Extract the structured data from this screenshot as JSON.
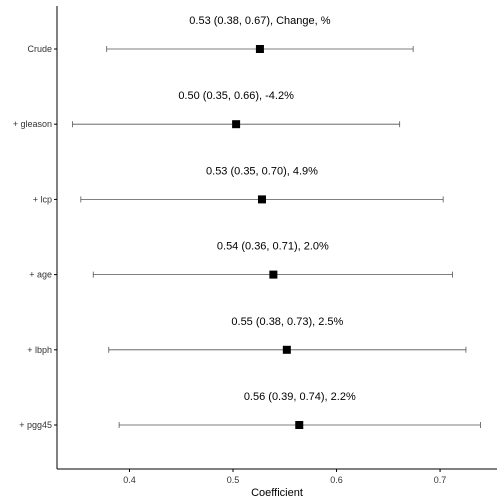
{
  "chart_data": {
    "type": "forest",
    "title": "",
    "xlabel": "Coefficient",
    "ylabel": "",
    "xlim": [
      0.33,
      0.755
    ],
    "x_ticks": [
      0.4,
      0.5,
      0.6,
      0.7
    ],
    "x_tick_labels": [
      "0.4",
      "0.5",
      "0.6",
      "0.7"
    ],
    "grid": false,
    "colors": {
      "point": "#000000",
      "ci": "#555555",
      "axis": "#000000"
    },
    "rows": [
      {
        "label": "Crude",
        "estimate": 0.526,
        "lower": 0.378,
        "upper": 0.674,
        "annotation": "0.53 (0.38, 0.67),  Change, %"
      },
      {
        "label": "+ gleason",
        "estimate": 0.503,
        "lower": 0.345,
        "upper": 0.661,
        "annotation": "0.50 (0.35, 0.66),  -4.2%"
      },
      {
        "label": "+ lcp",
        "estimate": 0.528,
        "lower": 0.353,
        "upper": 0.703,
        "annotation": "0.53 (0.35, 0.70),  4.9%"
      },
      {
        "label": "+ age",
        "estimate": 0.539,
        "lower": 0.365,
        "upper": 0.712,
        "annotation": "0.54 (0.36, 0.71),  2.0%"
      },
      {
        "label": "+ lbph",
        "estimate": 0.552,
        "lower": 0.38,
        "upper": 0.725,
        "annotation": "0.55 (0.38, 0.73),  2.5%"
      },
      {
        "label": "+ pgg45",
        "estimate": 0.564,
        "lower": 0.39,
        "upper": 0.739,
        "annotation": "0.56 (0.39, 0.74),  2.2%"
      }
    ]
  }
}
